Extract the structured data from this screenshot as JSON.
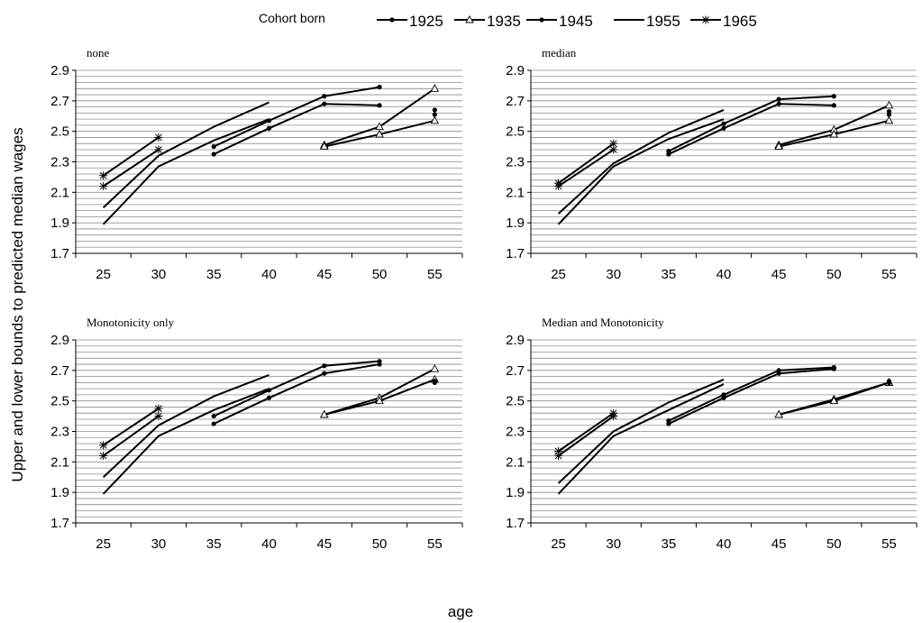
{
  "figure": {
    "ylabel": "Upper and lower bounds to predicted median wages",
    "xlabel": "age"
  },
  "legend": {
    "title": "Cohort born",
    "entries": [
      {
        "label": "1925",
        "marker": "dot"
      },
      {
        "label": "1935",
        "marker": "triangle"
      },
      {
        "label": "1945",
        "marker": "dot"
      },
      {
        "label": "1955",
        "marker": "none"
      },
      {
        "label": "1965",
        "marker": "star"
      }
    ]
  },
  "chart_data": [
    {
      "type": "line",
      "title": "none",
      "x_ticks": [
        25,
        30,
        35,
        40,
        45,
        50,
        55
      ],
      "ylim": [
        1.7,
        2.9
      ],
      "y_ticks": [
        "1.7",
        "1.9",
        "2.1",
        "2.3",
        "2.5",
        "2.7",
        "2.9"
      ],
      "grid": true,
      "series": [
        {
          "name": "1965",
          "marker": "star",
          "x": [
            25,
            30
          ],
          "y": [
            2.21,
            2.46
          ]
        },
        {
          "name": "1965",
          "marker": "star",
          "x": [
            25,
            30
          ],
          "y": [
            2.14,
            2.38
          ]
        },
        {
          "name": "1955",
          "marker": "none",
          "x": [
            25,
            30,
            35,
            40
          ],
          "y": [
            2.0,
            2.34,
            2.53,
            2.69
          ]
        },
        {
          "name": "1955",
          "marker": "none",
          "x": [
            25,
            30,
            35,
            40
          ],
          "y": [
            1.89,
            2.27,
            2.44,
            2.58
          ]
        },
        {
          "name": "1945",
          "marker": "dot",
          "x": [
            35,
            40,
            45,
            50
          ],
          "y": [
            2.4,
            2.57,
            2.73,
            2.79
          ]
        },
        {
          "name": "1945",
          "marker": "dot",
          "x": [
            35,
            40,
            45,
            50
          ],
          "y": [
            2.35,
            2.52,
            2.68,
            2.67
          ]
        },
        {
          "name": "1935",
          "marker": "triangle",
          "x": [
            45,
            50,
            55
          ],
          "y": [
            2.41,
            2.53,
            2.78
          ]
        },
        {
          "name": "1935",
          "marker": "triangle",
          "x": [
            45,
            50,
            55
          ],
          "y": [
            2.4,
            2.48,
            2.57
          ]
        },
        {
          "name": "1925",
          "marker": "dot",
          "x": [
            55
          ],
          "y": [
            2.64
          ]
        },
        {
          "name": "1925",
          "marker": "dot",
          "x": [
            55
          ],
          "y": [
            2.61
          ]
        }
      ]
    },
    {
      "type": "line",
      "title": "median",
      "x_ticks": [
        25,
        30,
        35,
        40,
        45,
        50,
        55
      ],
      "ylim": [
        1.7,
        2.9
      ],
      "y_ticks": [
        "1.7",
        "1.9",
        "2.1",
        "2.3",
        "2.5",
        "2.7",
        "2.9"
      ],
      "grid": true,
      "series": [
        {
          "name": "1965",
          "marker": "star",
          "x": [
            25,
            30
          ],
          "y": [
            2.16,
            2.42
          ]
        },
        {
          "name": "1965",
          "marker": "star",
          "x": [
            25,
            30
          ],
          "y": [
            2.14,
            2.38
          ]
        },
        {
          "name": "1955",
          "marker": "none",
          "x": [
            25,
            30,
            35,
            40
          ],
          "y": [
            1.96,
            2.29,
            2.49,
            2.64
          ]
        },
        {
          "name": "1955",
          "marker": "none",
          "x": [
            25,
            30,
            35,
            40
          ],
          "y": [
            1.89,
            2.27,
            2.45,
            2.58
          ]
        },
        {
          "name": "1945",
          "marker": "dot",
          "x": [
            35,
            40,
            45,
            50
          ],
          "y": [
            2.37,
            2.55,
            2.71,
            2.73
          ]
        },
        {
          "name": "1945",
          "marker": "dot",
          "x": [
            35,
            40,
            45,
            50
          ],
          "y": [
            2.35,
            2.52,
            2.68,
            2.67
          ]
        },
        {
          "name": "1935",
          "marker": "triangle",
          "x": [
            45,
            50,
            55
          ],
          "y": [
            2.41,
            2.51,
            2.67
          ]
        },
        {
          "name": "1935",
          "marker": "triangle",
          "x": [
            45,
            50,
            55
          ],
          "y": [
            2.4,
            2.48,
            2.57
          ]
        },
        {
          "name": "1925",
          "marker": "dot",
          "x": [
            55
          ],
          "y": [
            2.63
          ]
        },
        {
          "name": "1925",
          "marker": "dot",
          "x": [
            55
          ],
          "y": [
            2.61
          ]
        }
      ]
    },
    {
      "type": "line",
      "title": "Monotonicity only",
      "x_ticks": [
        25,
        30,
        35,
        40,
        45,
        50,
        55
      ],
      "ylim": [
        1.7,
        2.9
      ],
      "y_ticks": [
        "1.7",
        "1.9",
        "2.1",
        "2.3",
        "2.5",
        "2.7",
        "2.9"
      ],
      "grid": true,
      "series": [
        {
          "name": "1965",
          "marker": "star",
          "x": [
            25,
            30
          ],
          "y": [
            2.21,
            2.45
          ]
        },
        {
          "name": "1965",
          "marker": "star",
          "x": [
            25,
            30
          ],
          "y": [
            2.14,
            2.4
          ]
        },
        {
          "name": "1955",
          "marker": "none",
          "x": [
            25,
            30,
            35,
            40
          ],
          "y": [
            2.0,
            2.34,
            2.53,
            2.67
          ]
        },
        {
          "name": "1955",
          "marker": "none",
          "x": [
            25,
            30,
            35,
            40
          ],
          "y": [
            1.89,
            2.27,
            2.44,
            2.58
          ]
        },
        {
          "name": "1945",
          "marker": "dot",
          "x": [
            35,
            40,
            45,
            50
          ],
          "y": [
            2.4,
            2.57,
            2.73,
            2.76
          ]
        },
        {
          "name": "1945",
          "marker": "dot",
          "x": [
            35,
            40,
            45,
            50
          ],
          "y": [
            2.35,
            2.52,
            2.68,
            2.74
          ]
        },
        {
          "name": "1935",
          "marker": "triangle",
          "x": [
            45,
            50,
            55
          ],
          "y": [
            2.41,
            2.52,
            2.71
          ]
        },
        {
          "name": "1935",
          "marker": "triangle",
          "x": [
            45,
            50,
            55
          ],
          "y": [
            2.41,
            2.5,
            2.64
          ]
        },
        {
          "name": "1925",
          "marker": "dot",
          "x": [
            55
          ],
          "y": [
            2.63
          ]
        },
        {
          "name": "1925",
          "marker": "dot",
          "x": [
            55
          ],
          "y": [
            2.62
          ]
        }
      ]
    },
    {
      "type": "line",
      "title": "Median and Monotonicity",
      "x_ticks": [
        25,
        30,
        35,
        40,
        45,
        50,
        55
      ],
      "ylim": [
        1.7,
        2.9
      ],
      "y_ticks": [
        "1.7",
        "1.9",
        "2.1",
        "2.3",
        "2.5",
        "2.7",
        "2.9"
      ],
      "grid": true,
      "series": [
        {
          "name": "1965",
          "marker": "star",
          "x": [
            25,
            30
          ],
          "y": [
            2.17,
            2.42
          ]
        },
        {
          "name": "1965",
          "marker": "star",
          "x": [
            25,
            30
          ],
          "y": [
            2.14,
            2.4
          ]
        },
        {
          "name": "1955",
          "marker": "none",
          "x": [
            25,
            30,
            35,
            40
          ],
          "y": [
            1.96,
            2.3,
            2.49,
            2.64
          ]
        },
        {
          "name": "1955",
          "marker": "none",
          "x": [
            25,
            30,
            35,
            40
          ],
          "y": [
            1.89,
            2.27,
            2.44,
            2.61
          ]
        },
        {
          "name": "1945",
          "marker": "dot",
          "x": [
            35,
            40,
            45,
            50
          ],
          "y": [
            2.37,
            2.54,
            2.7,
            2.72
          ]
        },
        {
          "name": "1945",
          "marker": "dot",
          "x": [
            35,
            40,
            45,
            50
          ],
          "y": [
            2.35,
            2.52,
            2.68,
            2.71
          ]
        },
        {
          "name": "1935",
          "marker": "triangle",
          "x": [
            45,
            50,
            55
          ],
          "y": [
            2.41,
            2.51,
            2.62
          ]
        },
        {
          "name": "1935",
          "marker": "triangle",
          "x": [
            45,
            50,
            55
          ],
          "y": [
            2.41,
            2.5,
            2.62
          ]
        },
        {
          "name": "1925",
          "marker": "dot",
          "x": [
            55
          ],
          "y": [
            2.63
          ]
        },
        {
          "name": "1925",
          "marker": "dot",
          "x": [
            55
          ],
          "y": [
            2.62
          ]
        }
      ]
    }
  ]
}
